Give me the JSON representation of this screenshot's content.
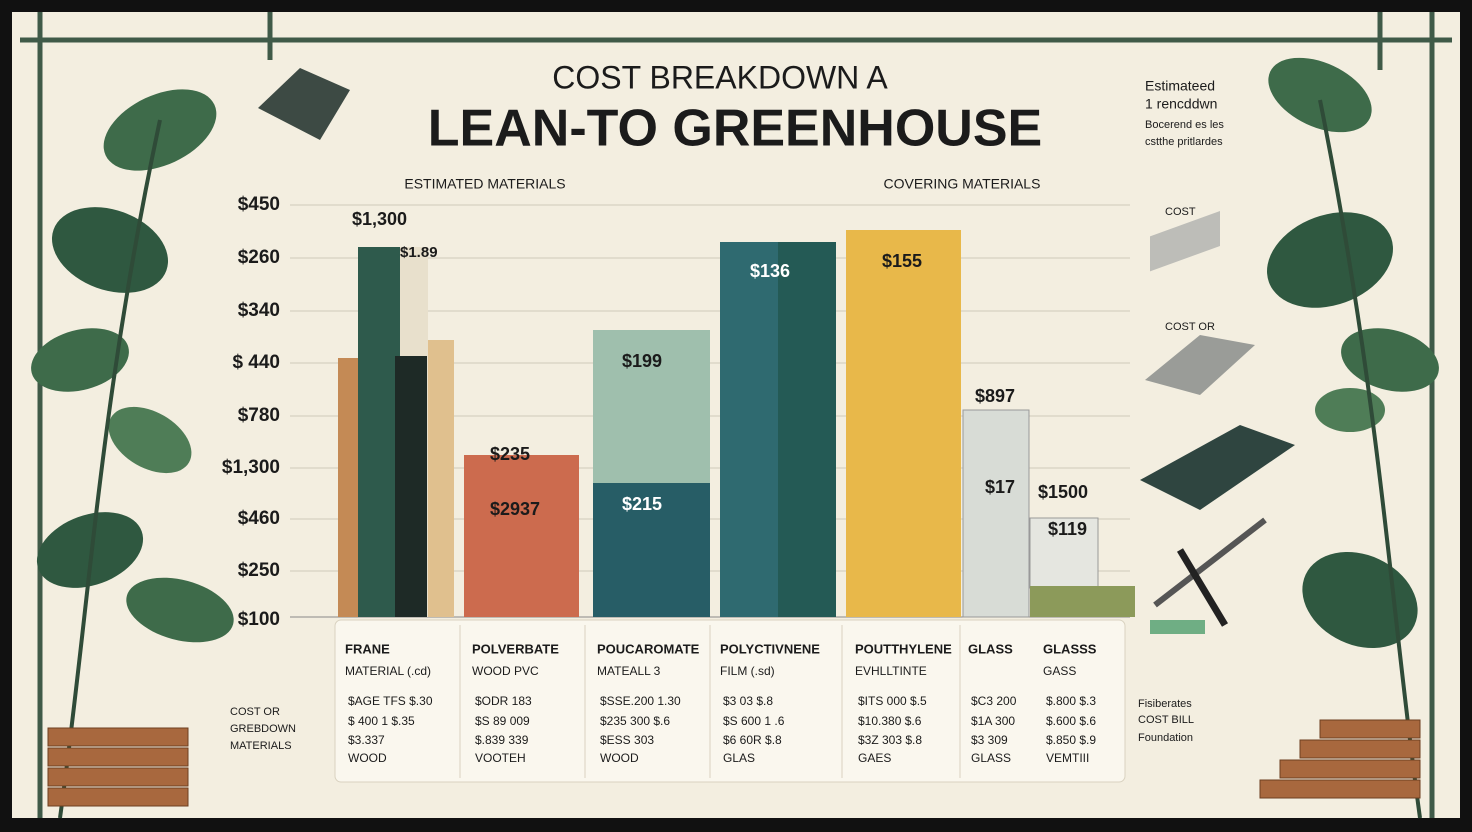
{
  "header": {
    "title_line1": "COST BREAKDOWN A",
    "title_line2": "LEAN-TO GREENHOUSE"
  },
  "corner_note": [
    "Estimateed",
    "1 rencddwn",
    "Bocerend es les",
    "cstthe pritlardes"
  ],
  "section_labels": [
    "ESTIMATED MATERIALS",
    "COVERING MATERIALS"
  ],
  "y_axis_labels": [
    "$450",
    "$260",
    "$340",
    "$ 440",
    "$780",
    "$1,300",
    "$460",
    "$250",
    "$100"
  ],
  "bar_labels": [
    "$1,300",
    "$1.89",
    "$235",
    "$2937",
    "$199",
    "$215",
    "$136",
    "$155",
    "$897",
    "$17",
    "$1500",
    "$119"
  ],
  "side_labels": [
    "COST",
    "COST OR"
  ],
  "left_note": [
    "COST OR",
    "GREBDOWN",
    "MATERIALS"
  ],
  "right_note": [
    "Fisiberates",
    "COST BILL",
    "Foundation"
  ],
  "columns": [
    {
      "lines": [
        "FRANE",
        "MATERIAL (.cd)",
        "$AGE TFS $.30",
        "$ 400 1 $.35",
        "$3.337",
        "WOOD"
      ]
    },
    {
      "lines": [
        "POLVERBATE",
        "WOOD PVC",
        "$ODR 183",
        "$S 89 009",
        "$.839 339",
        "VOOTEH"
      ]
    },
    {
      "lines": [
        "POUCAROMATE",
        "MATEALL 3",
        "$SSE.200 1.30",
        "$235 300 $.6",
        "$ESS 303",
        "WOOD"
      ]
    },
    {
      "lines": [
        "POLYCTIVNENE",
        "FILM (.sd)",
        "$3 03 $.8",
        "$S 600 1 .6",
        "$6 60R $.8",
        "GLAS"
      ]
    },
    {
      "lines": [
        "POUTTHYLENE",
        "EVHLLTINTE",
        "$ITS 000 $.5",
        "$10.380 $.6",
        "$3Z 303 $.8",
        "GAES"
      ]
    },
    {
      "lines": [
        "GLASS",
        "$C3 200",
        "$1A 300",
        "$3 309",
        "GLASS"
      ]
    },
    {
      "lines": [
        "GLASSS",
        "GASS",
        "$.800 $.3",
        "$.600 $.6",
        "$.850 $.9",
        "VEMTIII"
      ]
    }
  ]
}
